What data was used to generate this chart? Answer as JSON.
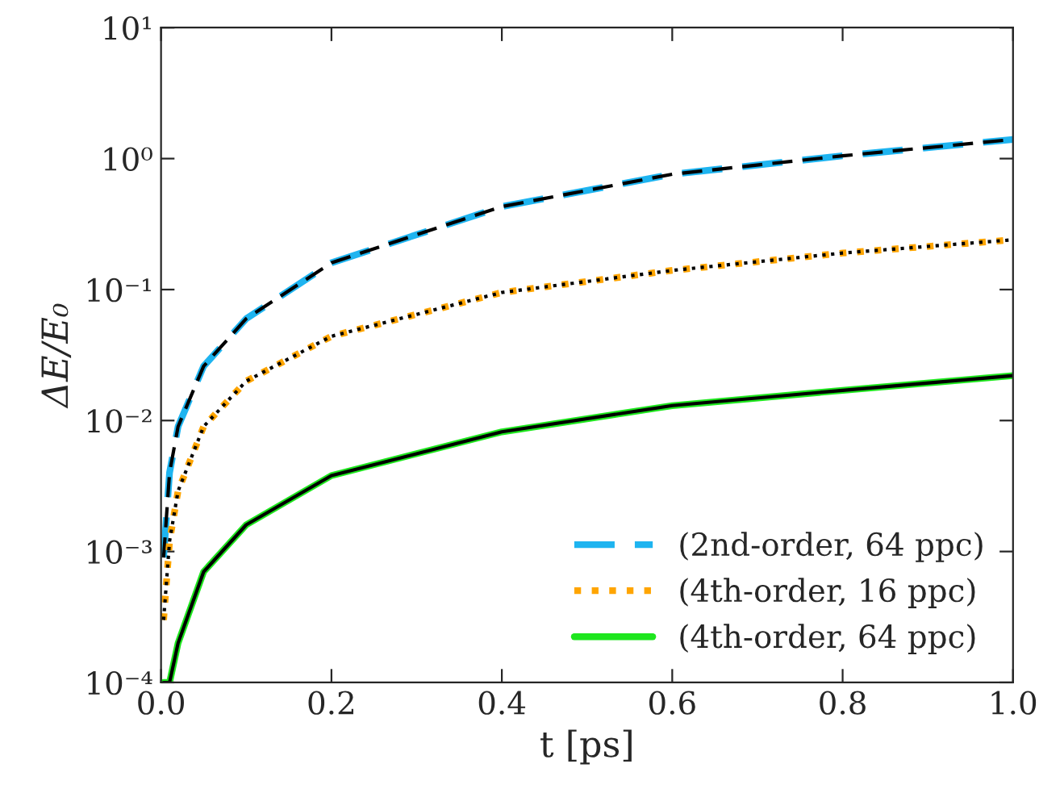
{
  "chart_data": {
    "type": "line",
    "xlabel": "t [ps]",
    "ylabel": "ΔE/E₀",
    "log": "y",
    "xlim": [
      0,
      1
    ],
    "ylim": [
      0.0001,
      10
    ],
    "xticks": [
      {
        "value": 0,
        "label": "0.0"
      },
      0.2,
      0.4,
      0.6,
      0.8,
      {
        "value": 1,
        "label": "1.0"
      }
    ],
    "yticks": [
      {
        "value": 0.0001,
        "label": "10⁻⁴"
      },
      {
        "value": 0.001,
        "label": "10⁻³"
      },
      {
        "value": 0.01,
        "label": "10⁻²"
      },
      {
        "value": 0.1,
        "label": "10⁻¹"
      },
      {
        "value": 1,
        "label": "10⁰"
      },
      {
        "value": 10,
        "label": "10¹"
      }
    ],
    "x": [
      0.003,
      0.01,
      0.02,
      0.05,
      0.1,
      0.2,
      0.4,
      0.6,
      0.8,
      1.0
    ],
    "grid": false,
    "legend": "bottom right",
    "marker": "none",
    "series": [
      {
        "name": "(2nd-order, 64 ppc)",
        "color": "#1eb4f0",
        "line_style": "dashed",
        "values": [
          0.0009,
          0.004,
          0.009,
          0.026,
          0.06,
          0.16,
          0.43,
          0.76,
          1.05,
          1.4
        ]
      },
      {
        "color": "#000000",
        "line_style": "dashed",
        "values": [
          0.0009,
          0.004,
          0.009,
          0.026,
          0.06,
          0.16,
          0.43,
          0.76,
          1.05,
          1.4
        ]
      },
      {
        "name": "(4th-order, 16 ppc)",
        "color": "#ffa500",
        "line_style": "dotted",
        "values": [
          0.0003,
          0.0012,
          0.0029,
          0.009,
          0.02,
          0.044,
          0.095,
          0.14,
          0.19,
          0.24
        ]
      },
      {
        "color": "#000000",
        "line_style": "dotted",
        "values": [
          0.0003,
          0.0012,
          0.0029,
          0.009,
          0.02,
          0.044,
          0.095,
          0.14,
          0.19,
          0.24
        ]
      },
      {
        "name": "(4th-order, 64 ppc)",
        "color": "#1ee61e",
        "line_style": "solid",
        "values": [
          0.0001,
          0.0001,
          0.0002,
          0.0007,
          0.0016,
          0.0038,
          0.0082,
          0.013,
          0.017,
          0.022
        ]
      },
      {
        "color": "#000000",
        "line_style": "solid",
        "values": [
          0.0001,
          0.0001,
          0.0002,
          0.0007,
          0.0016,
          0.0038,
          0.0082,
          0.013,
          0.017,
          0.022
        ]
      }
    ]
  }
}
